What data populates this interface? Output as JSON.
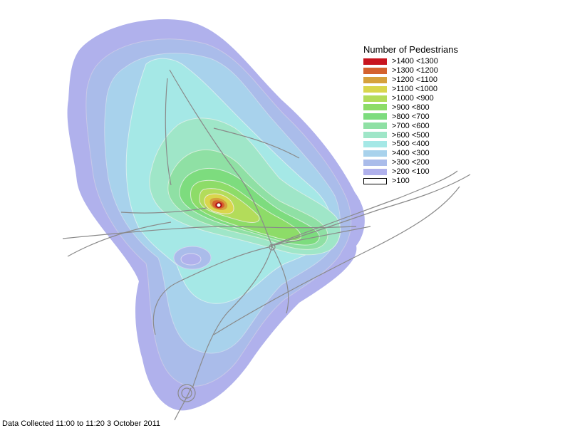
{
  "legend": {
    "title": "Number of Pedestrians",
    "items": [
      {
        "label": ">1400 <1300",
        "color": "#c8141e",
        "border": "none"
      },
      {
        "label": ">1300 <1200",
        "color": "#d4622e",
        "border": "none"
      },
      {
        "label": ">1200 <1100",
        "color": "#d6a13c",
        "border": "none"
      },
      {
        "label": ">1100 <1000",
        "color": "#d9d64c",
        "border": "none"
      },
      {
        "label": ">1000 <900",
        "color": "#b3dc5a",
        "border": "none"
      },
      {
        "label": ">900 <800",
        "color": "#8ddc68",
        "border": "none"
      },
      {
        "label": ">800 <700",
        "color": "#7ddc7e",
        "border": "none"
      },
      {
        "label": ">700 <600",
        "color": "#8fe0a4",
        "border": "none"
      },
      {
        "label": ">600 <500",
        "color": "#9fe6c8",
        "border": "none"
      },
      {
        "label": ">500 <400",
        "color": "#a5e8e6",
        "border": "none"
      },
      {
        "label": ">400 <300",
        "color": "#a8d2ec",
        "border": "none"
      },
      {
        "label": ">300 <200",
        "color": "#aabcea",
        "border": "none"
      },
      {
        "label": ">200 <100",
        "color": "#b0b1ec",
        "border": "none"
      },
      {
        "label": ">100",
        "color": "#ffffff",
        "border": "#000000"
      }
    ]
  },
  "footer": {
    "note": "Data Collected 11:00 to 11:20 3 October 2011"
  }
}
